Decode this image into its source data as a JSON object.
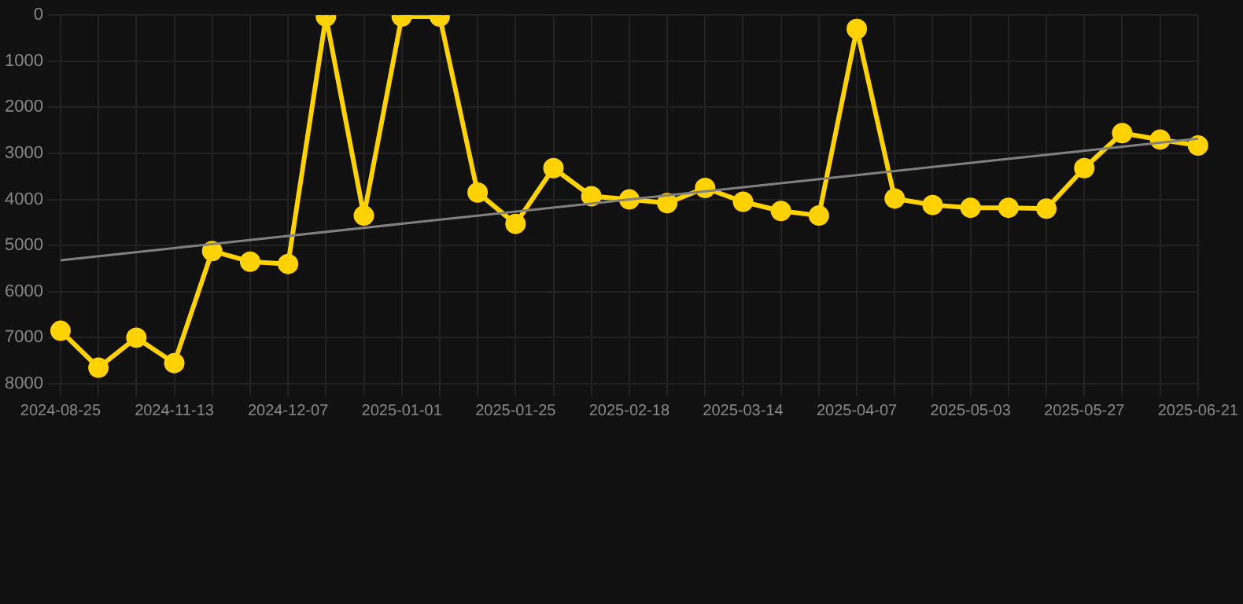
{
  "chart_data": {
    "type": "line",
    "categories": [
      "2024-08-25",
      null,
      null,
      "2024-11-13",
      null,
      null,
      "2024-12-07",
      null,
      null,
      "2025-01-01",
      null,
      null,
      "2025-01-25",
      null,
      null,
      "2025-02-18",
      null,
      null,
      "2025-03-14",
      null,
      null,
      "2025-04-07",
      null,
      null,
      "2025-05-03",
      null,
      null,
      "2025-05-27",
      null,
      null,
      "2025-06-21"
    ],
    "series": [
      {
        "color": "#ffd200",
        "marker": "circle",
        "values": [
          6850,
          7650,
          7000,
          7550,
          5120,
          5350,
          5400,
          30,
          4350,
          30,
          30,
          3850,
          4530,
          3320,
          3930,
          4000,
          4080,
          3750,
          4050,
          4250,
          4350,
          300,
          3980,
          4120,
          4180,
          4180,
          4200,
          3320,
          2560,
          2700,
          2830
        ]
      },
      {
        "type": "line",
        "color": "#808080",
        "marker": "none",
        "values": [
          5320,
          null,
          null,
          null,
          null,
          null,
          null,
          null,
          null,
          null,
          null,
          null,
          null,
          null,
          null,
          null,
          null,
          null,
          null,
          null,
          null,
          null,
          null,
          null,
          null,
          null,
          null,
          null,
          null,
          null,
          2680
        ]
      }
    ],
    "ylim": [
      8000,
      0
    ],
    "yticks": [
      0,
      1000,
      2000,
      3000,
      4000,
      5000,
      6000,
      7000,
      8000
    ],
    "grid": true,
    "legend": false
  }
}
